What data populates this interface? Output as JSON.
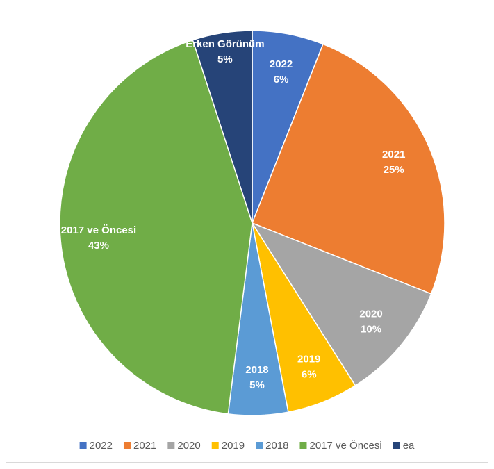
{
  "chart_data": {
    "type": "pie",
    "categories": [
      "2022",
      "2021",
      "2020",
      "2019",
      "2018",
      "2017 ve Öncesi",
      "ea"
    ],
    "slice_names": [
      "2022",
      "2021",
      "2020",
      "2019",
      "2018",
      "2017 ve Öncesi",
      "Erken Görünüm"
    ],
    "values": [
      6,
      25,
      10,
      6,
      5,
      43,
      5
    ],
    "value_labels": [
      "6%",
      "25%",
      "10%",
      "6%",
      "5%",
      "43%",
      "5%"
    ],
    "colors": [
      "#4472c4",
      "#ed7d31",
      "#a5a5a5",
      "#ffc000",
      "#5b9bd5",
      "#70ad47",
      "#264478"
    ],
    "legend": "bottom"
  }
}
